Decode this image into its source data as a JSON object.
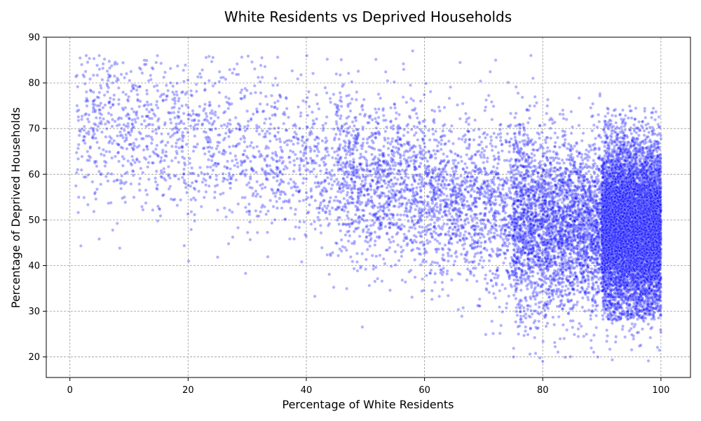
{
  "chart_data": {
    "type": "scatter",
    "title": "White Residents vs Deprived Households",
    "xlabel": "Percentage of White Residents",
    "ylabel": "Percentage of Deprived Households",
    "xlim": [
      -4,
      105
    ],
    "ylim": [
      15.5,
      90
    ],
    "xticks": [
      0,
      20,
      40,
      60,
      80,
      100
    ],
    "yticks": [
      20,
      30,
      40,
      50,
      60,
      70,
      80,
      90
    ],
    "xtick_labels": [
      "0",
      "20",
      "40",
      "60",
      "80",
      "100"
    ],
    "ytick_labels": [
      "20",
      "30",
      "40",
      "50",
      "60",
      "70",
      "80",
      "90"
    ],
    "grid": true,
    "marker_color": "#0000ff",
    "marker_edge_color": "#ffffff",
    "marker_opacity": 0.3,
    "point_count_estimate": "approximately 30000 (dense, sampled)",
    "series": [
      {
        "x": [
          2,
          2,
          3,
          4,
          5,
          5,
          6,
          7,
          8,
          9,
          10,
          11,
          12,
          13,
          14,
          15,
          16,
          17,
          18,
          19,
          20,
          21,
          22,
          23,
          24,
          25,
          26,
          27,
          28,
          29,
          30,
          31,
          32,
          33,
          34,
          35,
          36,
          37,
          38,
          39,
          40,
          41,
          42,
          43,
          44,
          45,
          46,
          47,
          48,
          49,
          50,
          51,
          52,
          53,
          54,
          55,
          56,
          57,
          58,
          59,
          60,
          61,
          62,
          63,
          64,
          65,
          66,
          67,
          68,
          69,
          70,
          71,
          72,
          73,
          74,
          75,
          76,
          77,
          78,
          79,
          80,
          81,
          82,
          83,
          84,
          85,
          86,
          87,
          88,
          89,
          90,
          91,
          92,
          93,
          94,
          95,
          96,
          97,
          98,
          99
        ],
        "y": [
          84,
          72,
          76,
          70,
          83,
          75,
          71,
          73,
          81,
          68,
          69,
          72,
          83,
          66,
          74,
          70,
          63,
          72,
          71,
          65,
          73,
          66,
          82,
          68,
          63,
          67,
          65,
          66,
          64,
          62,
          66,
          64,
          65,
          63,
          61,
          64,
          60,
          58,
          62,
          60,
          59,
          63,
          58,
          57,
          60,
          55,
          58,
          56,
          57,
          54,
          58,
          55,
          57,
          52,
          55,
          53,
          56,
          51,
          87,
          50,
          54,
          49,
          52,
          48,
          50,
          47,
          51,
          46,
          52,
          45,
          50,
          46,
          48,
          47,
          49,
          46,
          48,
          47,
          86,
          45,
          19,
          47,
          46,
          48,
          45,
          47,
          46,
          49,
          47,
          48,
          50,
          49,
          51,
          52,
          50,
          49,
          51,
          50,
          48,
          52
        ]
      }
    ]
  }
}
